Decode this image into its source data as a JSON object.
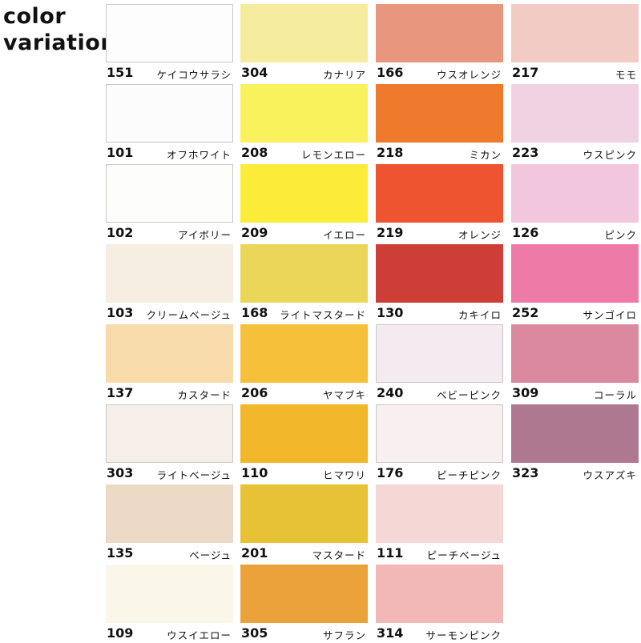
{
  "title_lines": [
    "color",
    "variation"
  ],
  "columns": [
    [
      {
        "code": "151",
        "name": "ケイコウサラシ",
        "color": "#fdfdfd",
        "light": true
      },
      {
        "code": "101",
        "name": "オフホワイト",
        "color": "#fcfcfc",
        "light": true
      },
      {
        "code": "102",
        "name": "アイボリー",
        "color": "#fdfdfb",
        "light": true
      },
      {
        "code": "103",
        "name": "クリームベージュ",
        "color": "#f6eee0",
        "light": false
      },
      {
        "code": "137",
        "name": "カスタード",
        "color": "#f8dbab",
        "light": false
      },
      {
        "code": "303",
        "name": "ライトベージュ",
        "color": "#f6eee8",
        "light": true
      },
      {
        "code": "135",
        "name": "ベージュ",
        "color": "#ecdac6",
        "light": false
      },
      {
        "code": "109",
        "name": "ウスイエロー",
        "color": "#faf7e8",
        "light": false
      }
    ],
    [
      {
        "code": "304",
        "name": "カナリア",
        "color": "#f5ec9e",
        "light": false
      },
      {
        "code": "208",
        "name": "レモンエロー",
        "color": "#f9f25c",
        "light": false
      },
      {
        "code": "209",
        "name": "イエロー",
        "color": "#faec38",
        "light": false
      },
      {
        "code": "168",
        "name": "ライトマスタード",
        "color": "#ecd65a",
        "light": false
      },
      {
        "code": "206",
        "name": "ヤマブキ",
        "color": "#f6c03a",
        "light": false
      },
      {
        "code": "110",
        "name": "ヒマワリ",
        "color": "#f2b72a",
        "light": false
      },
      {
        "code": "201",
        "name": "マスタード",
        "color": "#e6c234",
        "light": false
      },
      {
        "code": "305",
        "name": "サフラン",
        "color": "#eca23a",
        "light": false
      }
    ],
    [
      {
        "code": "166",
        "name": "ウスオレンジ",
        "color": "#e8967e",
        "light": false
      },
      {
        "code": "218",
        "name": "ミカン",
        "color": "#f07a2c",
        "light": false
      },
      {
        "code": "219",
        "name": "オレンジ",
        "color": "#ee5430",
        "light": false
      },
      {
        "code": "130",
        "name": "カキイロ",
        "color": "#cc3e36",
        "light": false
      },
      {
        "code": "240",
        "name": "ベビーピンク",
        "color": "#f5eaf0",
        "light": true
      },
      {
        "code": "176",
        "name": "ピーチピンク",
        "color": "#f9eef0",
        "light": true
      },
      {
        "code": "111",
        "name": "ピーチベージュ",
        "color": "#f5d8d6",
        "light": false
      },
      {
        "code": "314",
        "name": "サーモンピンク",
        "color": "#f2b8b8",
        "light": false
      }
    ],
    [
      {
        "code": "217",
        "name": "モモ",
        "color": "#f2cbc4",
        "light": false
      },
      {
        "code": "223",
        "name": "ウスピンク",
        "color": "#f1d2e3",
        "light": false
      },
      {
        "code": "126",
        "name": "ピンク",
        "color": "#f2c6dc",
        "light": false
      },
      {
        "code": "252",
        "name": "サンゴイロ",
        "color": "#ee7aa8",
        "light": false
      },
      {
        "code": "309",
        "name": "コーラル",
        "color": "#da899e",
        "light": false
      },
      {
        "code": "323",
        "name": "ウスアズキ",
        "color": "#ae7890",
        "light": false
      }
    ]
  ]
}
